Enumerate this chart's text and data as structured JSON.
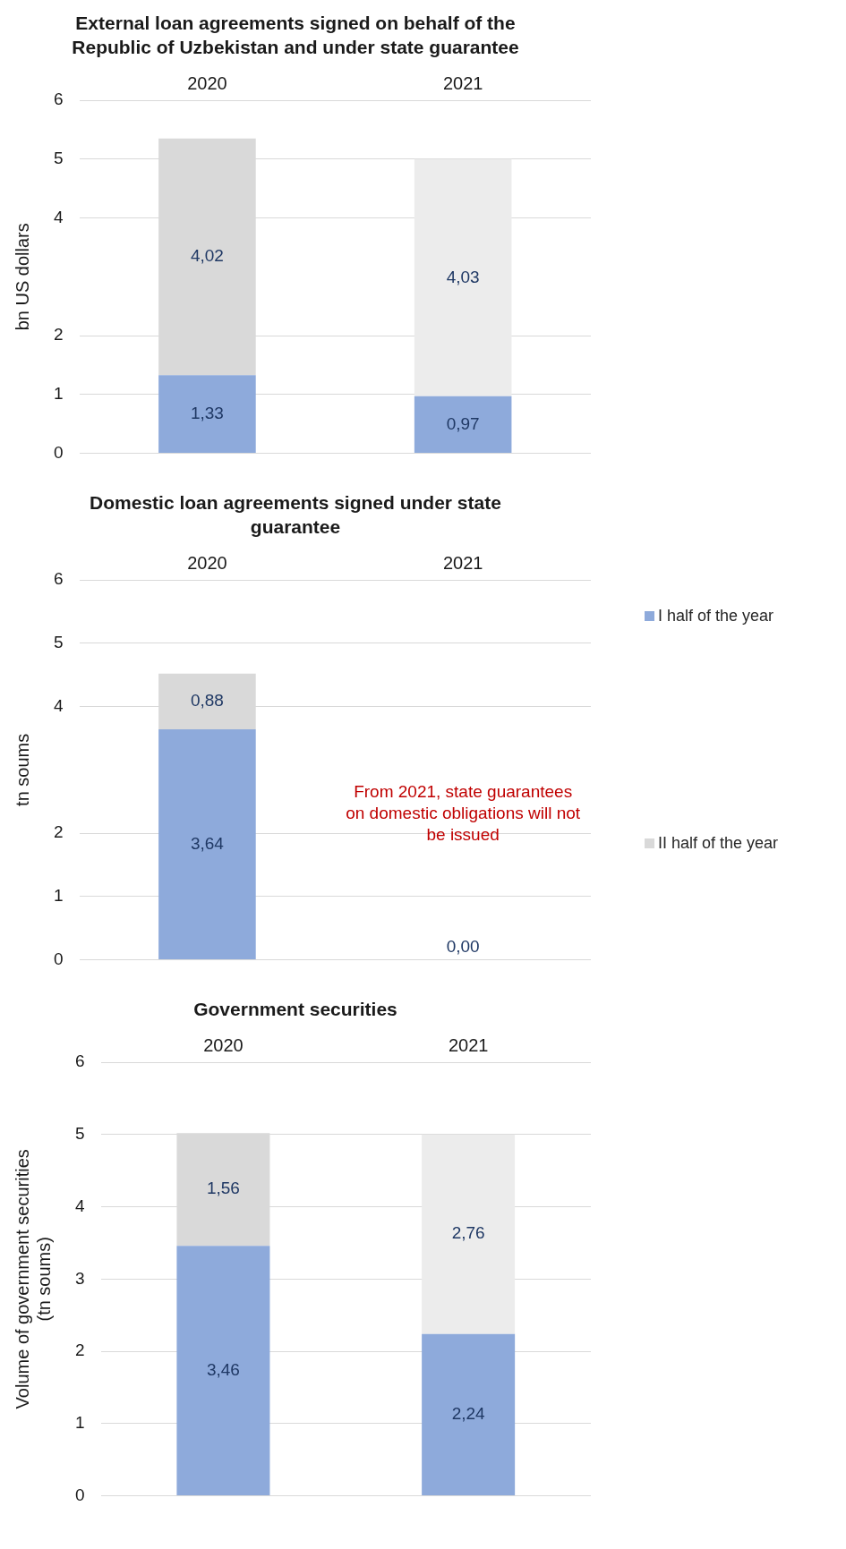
{
  "chart_data": [
    {
      "type": "bar",
      "title": "External loan agreements signed on behalf of the Republic of Uzbekistan and under state guarantee",
      "ylabel": "bn US dollars",
      "categories": [
        "2020",
        "2021"
      ],
      "stacked": true,
      "ylim": [
        0,
        6
      ],
      "yticks": [
        0,
        1,
        2,
        4,
        5,
        6
      ],
      "grid": "y",
      "legend": false,
      "series": [
        {
          "color": "#8eaadb",
          "values": [
            1.33,
            0.97
          ],
          "value_labels": [
            "1,33",
            "0,97"
          ]
        },
        {
          "colors": [
            "#d9d9d9",
            "#ececec"
          ],
          "values": [
            4.02,
            4.03
          ],
          "value_labels": [
            "4,02",
            "4,03"
          ]
        }
      ]
    },
    {
      "type": "bar",
      "title": "Domestic loan agreements signed under state guarantee",
      "ylabel": "tn soums",
      "categories": [
        "2020",
        "2021"
      ],
      "stacked": true,
      "ylim": [
        0,
        6
      ],
      "yticks": [
        0,
        1,
        2,
        4,
        5,
        6
      ],
      "grid": "y",
      "legend": "right",
      "annotations": [
        "From 2021, state guarantees on domestic obligations will not be issued"
      ],
      "series": [
        {
          "name": "I half of the year",
          "color": "#8eaadb",
          "values": [
            3.64,
            0
          ],
          "value_labels": [
            "3,64",
            "0,00"
          ]
        },
        {
          "name": "II half of the year",
          "color": "#d9d9d9",
          "values": [
            0.88,
            null
          ],
          "value_labels": [
            "0,88",
            null
          ]
        }
      ]
    },
    {
      "type": "bar",
      "title": "Government securities",
      "ylabel": "Volume of government securities (tn soums)",
      "categories": [
        "2020",
        "2021"
      ],
      "stacked": true,
      "ylim": [
        0,
        6
      ],
      "yticks": [
        0,
        1,
        2,
        3,
        4,
        5,
        6
      ],
      "grid": "y",
      "legend": false,
      "series": [
        {
          "color": "#8eaadb",
          "values": [
            3.46,
            2.24
          ],
          "value_labels": [
            "3,46",
            "2,24"
          ]
        },
        {
          "colors": [
            "#d9d9d9",
            "#ececec"
          ],
          "values": [
            1.56,
            2.76
          ],
          "value_labels": [
            "1,56",
            "2,76"
          ]
        }
      ]
    }
  ]
}
